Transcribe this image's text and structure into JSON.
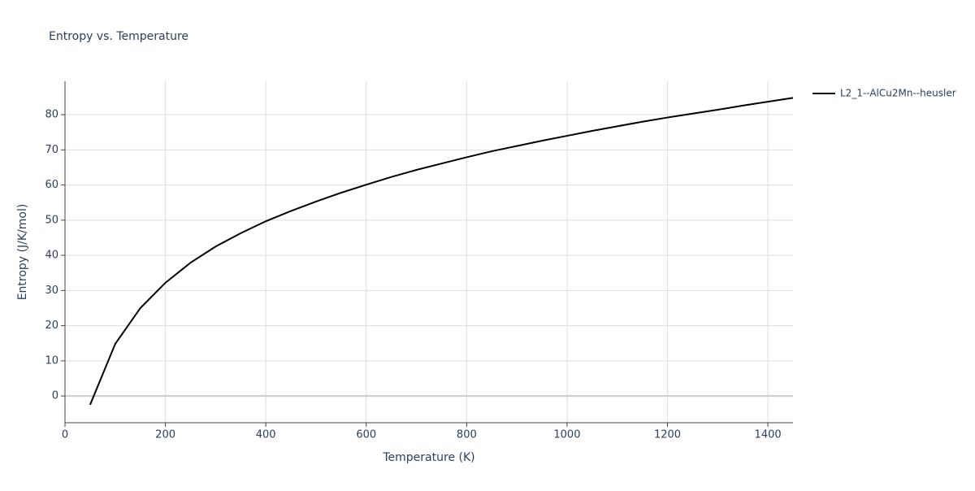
{
  "chart_data": {
    "type": "line",
    "title": "Entropy vs. Temperature",
    "x_label": "Temperature (K)",
    "y_label": "Entropy (J/K/mol)",
    "x": [
      50,
      100,
      150,
      200,
      250,
      300,
      350,
      400,
      450,
      500,
      550,
      600,
      650,
      700,
      750,
      800,
      850,
      900,
      950,
      1000,
      1050,
      1100,
      1150,
      1200,
      1250,
      1300,
      1350,
      1400,
      1450
    ],
    "series": [
      {
        "name": "L2_1--AlCu2Mn--heusler",
        "color": "#000000",
        "values": [
          -2.5,
          14.8,
          25,
          32.2,
          37.9,
          42.5,
          46.3,
          49.7,
          52.6,
          55.3,
          57.8,
          60.1,
          62.3,
          64.3,
          66.1,
          67.9,
          69.6,
          71.1,
          72.6,
          74.0,
          75.4,
          76.7,
          78.0,
          79.2,
          80.3,
          81.4,
          82.6,
          83.7,
          84.8
        ]
      }
    ],
    "xlim": [
      0,
      1450
    ],
    "xticks": [
      0,
      200,
      400,
      600,
      800,
      1000,
      1200,
      1400
    ],
    "ylim": [
      -7.6,
      89.5
    ],
    "yticks": [
      0,
      10,
      20,
      30,
      40,
      50,
      60,
      70,
      80
    ],
    "grid": true,
    "legend": "right"
  }
}
